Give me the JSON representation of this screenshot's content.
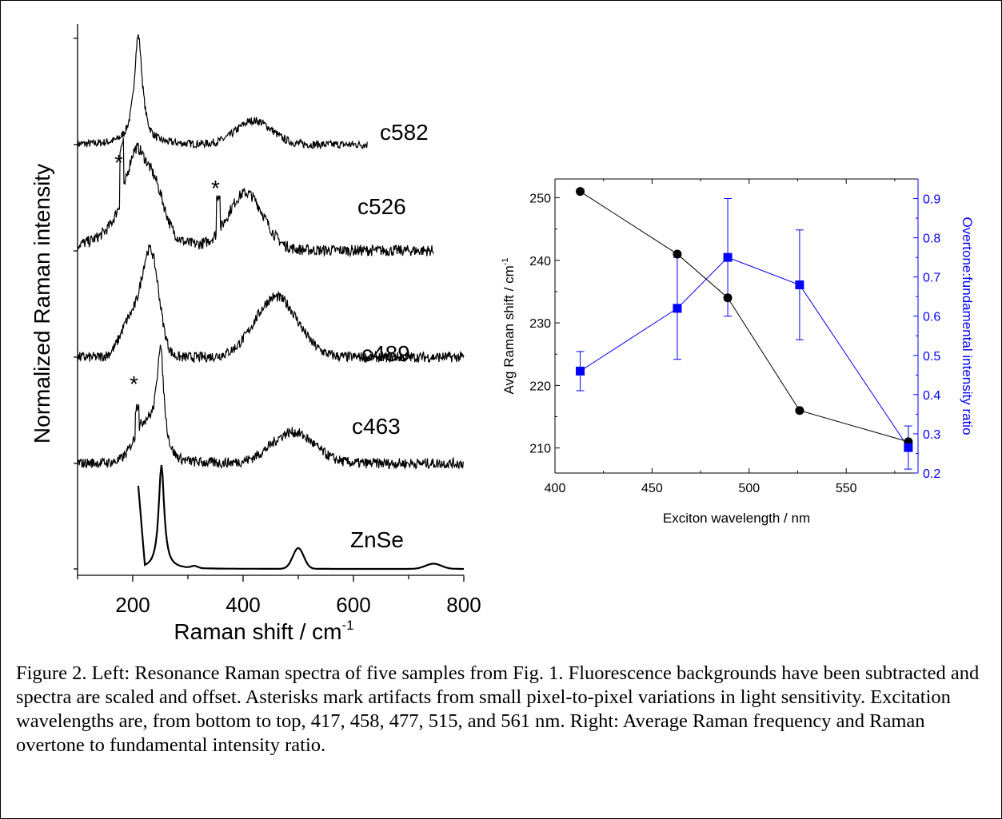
{
  "chart_data": [
    {
      "type": "line",
      "xlabel": "Raman shift / cm",
      "xlabel_sup": "-1",
      "ylabel": "Normalized Raman intensity",
      "xlim": [
        100,
        800
      ],
      "xticks": [
        "200",
        "400",
        "600",
        "800"
      ],
      "y_ticks_labeled": false,
      "series": [
        {
          "name": "c582",
          "x_range": [
            100,
            625
          ],
          "peaks": [
            [
              210,
              1.0
            ],
            [
              420,
              0.23
            ]
          ]
        },
        {
          "name": "c526",
          "x_range": [
            100,
            745
          ],
          "peaks": [
            [
              210,
              1.0
            ],
            [
              400,
              0.7
            ]
          ]
        },
        {
          "name": "c489",
          "x_range": [
            100,
            800
          ],
          "peaks": [
            [
              235,
              1.0
            ],
            [
              460,
              0.6
            ]
          ]
        },
        {
          "name": "c463",
          "x_range": [
            100,
            800
          ],
          "peaks": [
            [
              250,
              1.0
            ],
            [
              490,
              0.3
            ]
          ]
        },
        {
          "name": "ZnSe",
          "x_range": [
            210,
            800
          ],
          "peaks": [
            [
              252,
              1.0
            ],
            [
              500,
              0.2
            ],
            [
              745,
              0.05
            ]
          ]
        }
      ],
      "annotations": [
        {
          "text": "*",
          "x": 180,
          "series": "c526"
        },
        {
          "text": "*",
          "x": 355,
          "series": "c526"
        },
        {
          "text": "*",
          "x": 208,
          "series": "c463"
        }
      ]
    },
    {
      "type": "scatter",
      "xlabel": "Exciton wavelength / nm",
      "ylabel_left": "Avg Raman shift / cm",
      "ylabel_left_sup": "-1",
      "ylabel_right": "Overtone:fundamental intensity ratio",
      "xlim": [
        400,
        587
      ],
      "xticks": [
        400,
        450,
        500,
        550
      ],
      "ylim_left": [
        206,
        253
      ],
      "yticks_left": [
        210,
        220,
        230,
        240,
        250
      ],
      "ylim_right": [
        0.2,
        0.95
      ],
      "yticks_right": [
        "0.2",
        "0.3",
        "0.4",
        "0.5",
        "0.6",
        "0.7",
        "0.8",
        "0.9"
      ],
      "series": [
        {
          "axis": "left",
          "color": "#000000",
          "marker": "circle",
          "x": [
            413,
            463,
            489,
            526,
            582
          ],
          "y": [
            251,
            241,
            234,
            216,
            211
          ]
        },
        {
          "axis": "right",
          "color": "#0000ff",
          "marker": "square",
          "x": [
            413,
            463,
            489,
            526,
            582
          ],
          "y": [
            0.46,
            0.62,
            0.75,
            0.68,
            0.265
          ],
          "err": [
            0.05,
            0.13,
            0.15,
            0.14,
            0.055
          ]
        }
      ]
    }
  ],
  "caption": "Figure 2.  Left: Resonance Raman spectra of five samples from Fig. 1.  Fluorescence backgrounds have been subtracted and spectra are scaled and offset.  Asterisks mark artifacts from small pixel-to-pixel variations in light sensitivity.  Excitation wavelengths are, from bottom to top, 417, 458, 477, 515, and 561 nm.  Right: Average Raman frequency and Raman overtone to fundamental intensity ratio."
}
